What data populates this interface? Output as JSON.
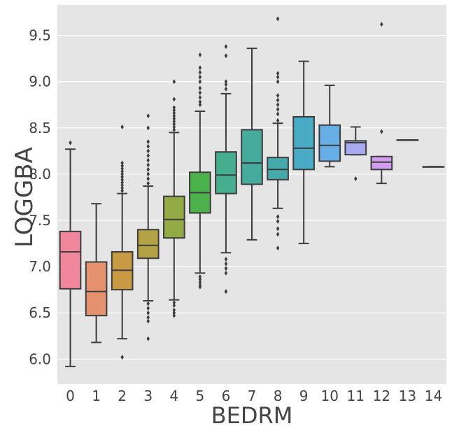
{
  "chart_data": {
    "type": "box",
    "xlabel": "BEDRM",
    "ylabel": "LOGGBA",
    "categories": [
      "0",
      "1",
      "2",
      "3",
      "4",
      "5",
      "6",
      "7",
      "8",
      "9",
      "10",
      "11",
      "12",
      "13",
      "14"
    ],
    "ylim": [
      5.73,
      9.83
    ],
    "yticks": [
      6.0,
      6.5,
      7.0,
      7.5,
      8.0,
      8.5,
      9.0,
      9.5
    ],
    "ytick_labels": [
      "6.0",
      "6.5",
      "7.0",
      "7.5",
      "8.0",
      "8.5",
      "9.0",
      "9.5"
    ],
    "grid": true,
    "background": "#e5e5e5",
    "grid_color": "#ffffff",
    "line_color": "#3d3d3d",
    "boxes": [
      {
        "cat": "0",
        "color": "#f0879a",
        "q1": 6.76,
        "median": 7.16,
        "q3": 7.38,
        "whislo": 5.92,
        "whishi": 8.27,
        "fliers": [
          8.34
        ]
      },
      {
        "cat": "1",
        "color": "#e4916e",
        "q1": 6.47,
        "median": 6.73,
        "q3": 7.05,
        "whislo": 6.18,
        "whishi": 7.68,
        "fliers": []
      },
      {
        "cat": "2",
        "color": "#c99a44",
        "q1": 6.75,
        "median": 6.96,
        "q3": 7.16,
        "whislo": 6.22,
        "whishi": 7.79,
        "fliers": [
          6.02,
          7.82,
          7.85,
          7.88,
          7.91,
          7.94,
          7.97,
          8.0,
          8.03,
          8.06,
          8.09,
          8.12,
          8.51
        ]
      },
      {
        "cat": "3",
        "color": "#b3a344",
        "q1": 7.09,
        "median": 7.23,
        "q3": 7.4,
        "whislo": 6.63,
        "whishi": 7.87,
        "fliers": [
          6.22,
          6.41,
          6.45,
          6.5,
          6.55,
          6.6,
          7.9,
          7.95,
          8.0,
          8.05,
          8.1,
          8.15,
          8.2,
          8.25,
          8.3,
          8.35,
          8.5,
          8.63
        ]
      },
      {
        "cat": "4",
        "color": "#93ab44",
        "q1": 7.31,
        "median": 7.51,
        "q3": 7.76,
        "whislo": 6.64,
        "whishi": 8.45,
        "fliers": [
          6.47,
          6.5,
          6.53,
          6.58,
          6.61,
          8.48,
          8.51,
          8.54,
          8.57,
          8.6,
          8.63,
          8.66,
          8.69,
          8.72,
          8.81,
          9.0
        ]
      },
      {
        "cat": "5",
        "color": "#4cb14b",
        "q1": 7.58,
        "median": 7.8,
        "q3": 8.02,
        "whislo": 6.93,
        "whishi": 8.68,
        "fliers": [
          6.78,
          6.8,
          6.83,
          6.86,
          6.89,
          8.75,
          8.78,
          8.83,
          8.88,
          8.93,
          9.0,
          9.05,
          9.1,
          9.15,
          9.29
        ]
      },
      {
        "cat": "6",
        "color": "#44ae8e",
        "q1": 7.79,
        "median": 7.99,
        "q3": 8.24,
        "whislo": 7.15,
        "whishi": 8.87,
        "fliers": [
          6.73,
          6.93,
          6.98,
          7.03,
          7.08,
          8.92,
          8.97,
          9.0,
          9.28,
          9.38
        ]
      },
      {
        "cat": "7",
        "color": "#45ab9d",
        "q1": 7.89,
        "median": 8.12,
        "q3": 8.48,
        "whislo": 7.29,
        "whishi": 9.36,
        "fliers": []
      },
      {
        "cat": "8",
        "color": "#46aaad",
        "q1": 7.94,
        "median": 8.05,
        "q3": 8.18,
        "whislo": 7.63,
        "whishi": 8.55,
        "fliers": [
          7.2,
          7.35,
          7.41,
          7.49,
          7.54,
          8.58,
          8.65,
          8.7,
          8.75,
          8.8,
          8.85,
          9.0,
          9.05,
          9.09,
          9.68
        ]
      },
      {
        "cat": "9",
        "color": "#48aac4",
        "q1": 8.05,
        "median": 8.28,
        "q3": 8.62,
        "whislo": 7.25,
        "whishi": 9.22,
        "fliers": []
      },
      {
        "cat": "10",
        "color": "#66aee5",
        "q1": 8.14,
        "median": 8.31,
        "q3": 8.53,
        "whislo": 8.08,
        "whishi": 8.96,
        "fliers": []
      },
      {
        "cat": "11",
        "color": "#a9a9f0",
        "q1": 8.21,
        "median": 8.34,
        "q3": 8.36,
        "whislo": 8.21,
        "whishi": 8.51,
        "fliers": [
          7.95
        ]
      },
      {
        "cat": "12",
        "color": "#d39ef0",
        "q1": 8.05,
        "median": 8.13,
        "q3": 8.19,
        "whislo": 7.9,
        "whishi": 8.19,
        "fliers": [
          8.46,
          9.62
        ]
      },
      {
        "cat": "13",
        "color": "#ea8fdb",
        "q1": 8.37,
        "median": 8.37,
        "q3": 8.37,
        "whislo": 8.37,
        "whishi": 8.37,
        "fliers": []
      },
      {
        "cat": "14",
        "color": "#f18db9",
        "q1": 8.08,
        "median": 8.08,
        "q3": 8.08,
        "whislo": 8.08,
        "whishi": 8.08,
        "fliers": []
      }
    ]
  }
}
